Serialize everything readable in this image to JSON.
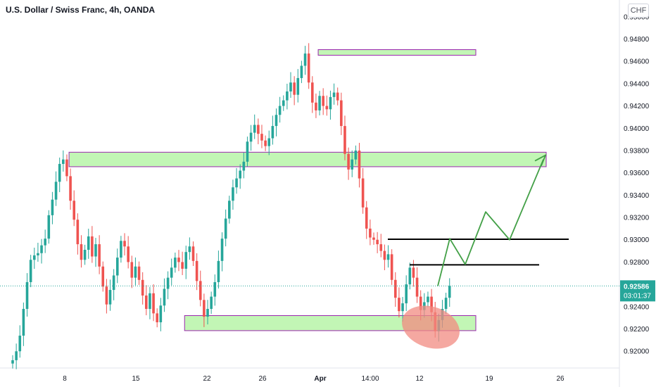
{
  "header": {
    "title": "U.S. Dollar / Swiss Franc, 4h, OANDA",
    "currency": "CHF"
  },
  "colors": {
    "up": "#26a69a",
    "down": "#ef5350",
    "zone_fill": "#b7f5a8",
    "zone_border": "#9c27b0",
    "arrow": "#43a047",
    "level": "#000000",
    "highlight": "#f28b82",
    "price_label_bg": "#26a69a"
  },
  "chart_data": {
    "type": "candlestick",
    "symbol": "U.S. Dollar / Swiss Franc",
    "timeframe": "4h",
    "source": "OANDA",
    "ylim": [
      0.9185,
      0.9515
    ],
    "y_ticks": [
      "0.95000",
      "0.94800",
      "0.94600",
      "0.94400",
      "0.94200",
      "0.94000",
      "0.93800",
      "0.93600",
      "0.93400",
      "0.93200",
      "0.93000",
      "0.92800",
      "0.92600",
      "0.92400",
      "0.92200",
      "0.92000"
    ],
    "x_ticks": [
      "8",
      "15",
      "22",
      "26",
      "Apr",
      "14:00",
      "12",
      "19",
      "26"
    ],
    "last_price": "0.92586",
    "countdown": "03:01:37",
    "closes": [
      0.9192,
      0.92,
      0.9214,
      0.9238,
      0.9262,
      0.9282,
      0.9286,
      0.9288,
      0.9295,
      0.9301,
      0.9322,
      0.9336,
      0.9352,
      0.9368,
      0.9372,
      0.9357,
      0.9335,
      0.9318,
      0.9296,
      0.9282,
      0.9291,
      0.9303,
      0.9285,
      0.9296,
      0.9276,
      0.9258,
      0.9242,
      0.9255,
      0.9268,
      0.9284,
      0.9299,
      0.9294,
      0.928,
      0.9266,
      0.9276,
      0.9264,
      0.925,
      0.9238,
      0.9252,
      0.9234,
      0.9226,
      0.9241,
      0.9256,
      0.9266,
      0.9275,
      0.9284,
      0.928,
      0.9274,
      0.9289,
      0.9294,
      0.9281,
      0.9263,
      0.9246,
      0.9231,
      0.9238,
      0.9249,
      0.9262,
      0.9281,
      0.9301,
      0.9319,
      0.9335,
      0.9347,
      0.9355,
      0.9362,
      0.937,
      0.9388,
      0.9396,
      0.9403,
      0.9395,
      0.9389,
      0.9384,
      0.9391,
      0.9402,
      0.9412,
      0.942,
      0.9425,
      0.9433,
      0.9441,
      0.943,
      0.9445,
      0.9456,
      0.9467,
      0.9441,
      0.9423,
      0.9416,
      0.9429,
      0.942,
      0.9417,
      0.9428,
      0.9432,
      0.9425,
      0.9402,
      0.9377,
      0.9363,
      0.9372,
      0.938,
      0.9355,
      0.9329,
      0.931,
      0.9302,
      0.93,
      0.9296,
      0.929,
      0.9282,
      0.9287,
      0.9264,
      0.9248,
      0.9236,
      0.9243,
      0.926,
      0.9275,
      0.9266,
      0.9249,
      0.9237,
      0.9244,
      0.9249,
      0.9235,
      0.9218,
      0.9228,
      0.9238,
      0.9248,
      0.92586
    ],
    "zones": [
      {
        "name": "top-zone",
        "low": 0.94665,
        "high": 0.94705,
        "from_index": 85,
        "to": "19"
      },
      {
        "name": "upper-zone",
        "low": 0.93655,
        "high": 0.93785,
        "from_index": 16,
        "to": "26"
      },
      {
        "name": "lower-zone",
        "low": 0.92185,
        "high": 0.9232,
        "from_index": 48,
        "to": "19"
      }
    ],
    "levels": [
      {
        "name": "level-upper",
        "price": 0.93005
      },
      {
        "name": "level-lower",
        "price": 0.92775
      }
    ],
    "projection_path": [
      0.92586,
      0.9301,
      0.9278,
      0.9325,
      0.93,
      0.9372
    ]
  }
}
